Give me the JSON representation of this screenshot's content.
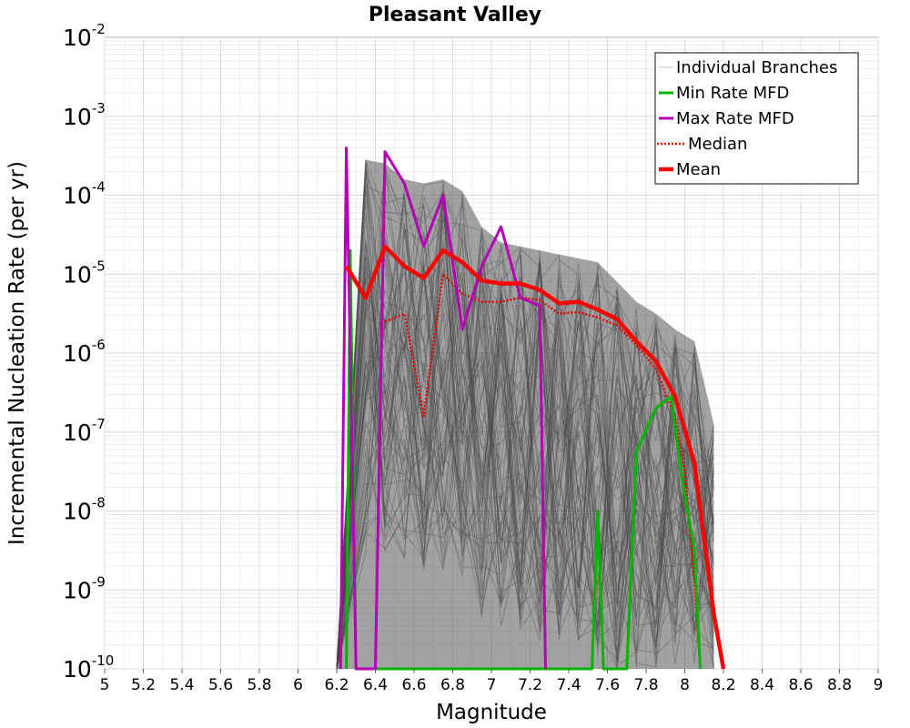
{
  "chart_data": {
    "type": "line",
    "title": "Pleasant Valley",
    "xlabel": "Magnitude",
    "ylabel": "Incremental Nucleation Rate (per yr)",
    "xlim": [
      5,
      9
    ],
    "ylim_log10": [
      -10,
      -2
    ],
    "yscale": "log",
    "x_ticks": [
      "5",
      "5.2",
      "5.4",
      "5.6",
      "5.8",
      "6",
      "6.2",
      "6.4",
      "6.6",
      "6.8",
      "7",
      "7.2",
      "7.4",
      "7.6",
      "7.8",
      "8",
      "8.2",
      "8.4",
      "8.6",
      "8.8",
      "9"
    ],
    "y_ticks": [
      {
        "base": "10",
        "exp": "-10"
      },
      {
        "base": "10",
        "exp": "-9"
      },
      {
        "base": "10",
        "exp": "-8"
      },
      {
        "base": "10",
        "exp": "-7"
      },
      {
        "base": "10",
        "exp": "-6"
      },
      {
        "base": "10",
        "exp": "-5"
      },
      {
        "base": "10",
        "exp": "-4"
      },
      {
        "base": "10",
        "exp": "-3"
      },
      {
        "base": "10",
        "exp": "-2"
      }
    ],
    "grid": true,
    "legend_position": "top-right",
    "legend": [
      {
        "label": "Individual Branches",
        "color": "#c8c8c8",
        "style": "thin"
      },
      {
        "label": "Min Rate MFD",
        "color": "#00b400",
        "style": "solid"
      },
      {
        "label": "Max Rate MFD",
        "color": "#b400b4",
        "style": "solid"
      },
      {
        "label": "Median",
        "color": "#e60000",
        "style": "dotted"
      },
      {
        "label": "Mean",
        "color": "#ff0000",
        "style": "thick"
      }
    ],
    "series": [
      {
        "name": "Mean",
        "color": "#ff0000",
        "x": [
          6.25,
          6.35,
          6.45,
          6.55,
          6.65,
          6.75,
          6.85,
          6.95,
          7.05,
          7.15,
          7.25,
          7.35,
          7.45,
          7.55,
          7.65,
          7.75,
          7.85,
          7.95,
          8.05,
          8.15,
          8.2
        ],
        "log10_y": [
          -4.9,
          -5.3,
          -4.65,
          -4.9,
          -5.05,
          -4.7,
          -4.85,
          -5.08,
          -5.12,
          -5.12,
          -5.2,
          -5.37,
          -5.35,
          -5.45,
          -5.57,
          -5.85,
          -6.1,
          -6.55,
          -7.4,
          -9.3,
          -10
        ]
      },
      {
        "name": "Median",
        "color": "#e60000",
        "x": [
          6.45,
          6.55,
          6.65,
          6.75,
          6.85,
          6.95,
          7.05,
          7.15,
          7.25,
          7.35,
          7.45,
          7.55,
          7.65,
          7.75,
          7.85,
          7.95,
          8.0,
          8.05,
          8.08
        ],
        "log10_y": [
          -5.6,
          -5.5,
          -6.8,
          -5.0,
          -5.25,
          -5.35,
          -5.35,
          -5.3,
          -5.33,
          -5.5,
          -5.48,
          -5.55,
          -5.65,
          -5.9,
          -6.2,
          -6.8,
          -7.5,
          -8.9,
          -10
        ]
      },
      {
        "name": "Min Rate MFD",
        "color": "#00b400",
        "x": [
          6.25,
          6.27,
          6.3,
          7.52,
          7.55,
          7.58,
          7.7,
          7.75,
          7.85,
          7.93,
          7.98,
          8.05,
          8.08
        ],
        "log10_y": [
          -10,
          -4.7,
          -10,
          -10,
          -8.0,
          -10,
          -10,
          -7.25,
          -6.7,
          -6.55,
          -7.5,
          -8.5,
          -10
        ]
      },
      {
        "name": "Max Rate MFD",
        "color": "#b400b4",
        "x": [
          6.22,
          6.25,
          6.3,
          6.4,
          6.45,
          6.55,
          6.65,
          6.75,
          6.85,
          6.95,
          7.05,
          7.15,
          7.25,
          7.28
        ],
        "log10_y": [
          -10,
          -3.4,
          -10,
          -10,
          -3.45,
          -3.85,
          -4.65,
          -4.0,
          -5.7,
          -4.9,
          -4.4,
          -5.3,
          -5.4,
          -10
        ]
      }
    ],
    "branch_band": {
      "name": "Individual Branches",
      "color": "#555555",
      "x": [
        6.2,
        6.35,
        6.45,
        6.55,
        6.65,
        6.75,
        6.85,
        6.95,
        7.05,
        7.15,
        7.25,
        7.35,
        7.45,
        7.55,
        7.65,
        7.75,
        7.85,
        7.95,
        8.05,
        8.15
      ],
      "log10_upper": [
        -10,
        -3.55,
        -3.6,
        -3.8,
        -3.85,
        -3.8,
        -3.95,
        -4.4,
        -4.6,
        -4.65,
        -4.7,
        -4.75,
        -4.8,
        -4.85,
        -5.1,
        -5.35,
        -5.5,
        -5.7,
        -5.85,
        -6.9
      ],
      "log10_lower": [
        -10,
        -10,
        -10,
        -10,
        -10,
        -10,
        -10,
        -10,
        -10,
        -10,
        -10,
        -10,
        -10,
        -10,
        -10,
        -10,
        -10,
        -10,
        -10,
        -10
      ]
    }
  }
}
